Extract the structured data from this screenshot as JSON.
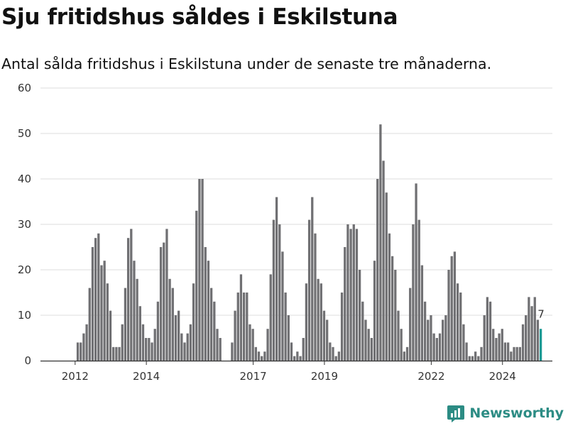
{
  "title": "Sju fritidshus såldes i Eskilstuna",
  "subtitle": "Antal sålda fritidshus i Eskilstuna under de senaste tre månaderna.",
  "brand": "Newsworthy",
  "colors": {
    "bar": "#707073",
    "highlight": "#1a9a94",
    "grid": "#dddddd",
    "brand": "#2c8c84"
  },
  "chart_data": {
    "type": "bar",
    "ylim": [
      0,
      60
    ],
    "yticks": [
      0,
      10,
      20,
      30,
      40,
      50,
      60
    ],
    "xticks": [
      {
        "label": "2012",
        "month": "2012-01"
      },
      {
        "label": "2014",
        "month": "2014-01"
      },
      {
        "label": "2017",
        "month": "2017-01"
      },
      {
        "label": "2019",
        "month": "2019-01"
      },
      {
        "label": "2022",
        "month": "2022-01"
      },
      {
        "label": "2024",
        "month": "2024-01"
      }
    ],
    "start_month": "2011-09",
    "values": [
      null,
      null,
      null,
      null,
      null,
      4,
      4,
      6,
      8,
      16,
      25,
      27,
      28,
      21,
      22,
      17,
      11,
      3,
      3,
      3,
      8,
      16,
      27,
      29,
      22,
      18,
      12,
      8,
      5,
      5,
      4,
      7,
      13,
      25,
      26,
      29,
      18,
      16,
      10,
      11,
      6,
      4,
      6,
      8,
      17,
      33,
      40,
      40,
      25,
      22,
      16,
      13,
      7,
      5,
      null,
      null,
      null,
      4,
      11,
      15,
      19,
      15,
      15,
      8,
      7,
      3,
      2,
      1,
      2,
      7,
      19,
      31,
      36,
      30,
      24,
      15,
      10,
      4,
      1,
      2,
      1,
      5,
      17,
      31,
      36,
      28,
      18,
      17,
      11,
      9,
      4,
      3,
      1,
      2,
      15,
      25,
      30,
      29,
      30,
      29,
      20,
      13,
      9,
      7,
      5,
      22,
      40,
      52,
      44,
      37,
      28,
      23,
      20,
      11,
      7,
      2,
      3,
      16,
      30,
      39,
      31,
      21,
      13,
      9,
      10,
      6,
      5,
      6,
      9,
      10,
      20,
      23,
      24,
      17,
      15,
      8,
      4,
      1,
      1,
      2,
      1,
      3,
      10,
      14,
      13,
      7,
      5,
      6,
      7,
      4,
      4,
      2,
      3,
      3,
      3,
      8,
      10,
      14,
      12,
      14,
      9,
      7
    ],
    "highlight_last": true,
    "last_label": "7"
  }
}
